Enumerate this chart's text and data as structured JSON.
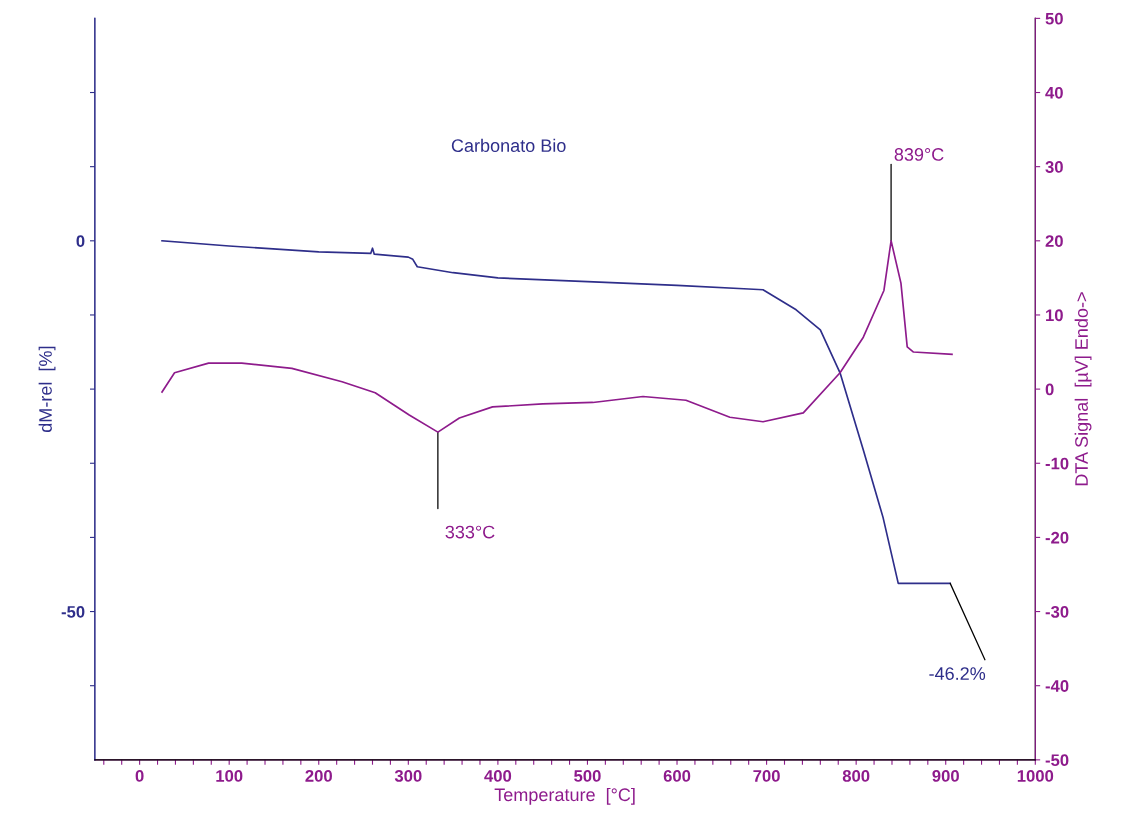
{
  "chart_data": {
    "type": "line",
    "title": "Carbonato Bio",
    "xlabel": "Temperature  [°C]",
    "ylabel": "dM-rel  [%]",
    "y2label": "DTA Signal  [µV] Endo->",
    "xlim": [
      -50,
      1000
    ],
    "xticks": [
      {
        "value": -40,
        "label": null
      },
      {
        "value": -20,
        "label": null
      },
      0,
      {
        "value": 20,
        "label": null
      },
      {
        "value": 40,
        "label": null
      },
      {
        "value": 60,
        "label": null
      },
      {
        "value": 80,
        "label": null
      },
      100,
      {
        "value": 120,
        "label": null
      },
      {
        "value": 140,
        "label": null
      },
      {
        "value": 160,
        "label": null
      },
      {
        "value": 180,
        "label": null
      },
      200,
      {
        "value": 220,
        "label": null
      },
      {
        "value": 240,
        "label": null
      },
      {
        "value": 260,
        "label": null
      },
      {
        "value": 280,
        "label": null
      },
      300,
      {
        "value": 320,
        "label": null
      },
      {
        "value": 340,
        "label": null
      },
      {
        "value": 360,
        "label": null
      },
      {
        "value": 380,
        "label": null
      },
      400,
      {
        "value": 420,
        "label": null
      },
      {
        "value": 440,
        "label": null
      },
      {
        "value": 460,
        "label": null
      },
      {
        "value": 480,
        "label": null
      },
      500,
      {
        "value": 520,
        "label": null
      },
      {
        "value": 540,
        "label": null
      },
      {
        "value": 560,
        "label": null
      },
      {
        "value": 580,
        "label": null
      },
      600,
      {
        "value": 620,
        "label": null
      },
      {
        "value": 640,
        "label": null
      },
      {
        "value": 660,
        "label": null
      },
      {
        "value": 680,
        "label": null
      },
      700,
      {
        "value": 720,
        "label": null
      },
      {
        "value": 740,
        "label": null
      },
      {
        "value": 760,
        "label": null
      },
      {
        "value": 780,
        "label": null
      },
      800,
      {
        "value": 820,
        "label": null
      },
      {
        "value": 840,
        "label": null
      },
      {
        "value": 860,
        "label": null
      },
      {
        "value": 880,
        "label": null
      },
      900,
      {
        "value": 920,
        "label": null
      },
      {
        "value": 940,
        "label": null
      },
      {
        "value": 960,
        "label": null
      },
      {
        "value": 980,
        "label": null
      },
      1000
    ],
    "ylim": [
      -70,
      30
    ],
    "yticks": [
      {
        "value": -60,
        "label": null
      },
      -50,
      {
        "value": -40,
        "label": null
      },
      {
        "value": -30,
        "label": null
      },
      {
        "value": -20,
        "label": null
      },
      {
        "value": -10,
        "label": null
      },
      0,
      {
        "value": 10,
        "label": null
      },
      {
        "value": 20,
        "label": null
      }
    ],
    "y2lim": [
      -50,
      50
    ],
    "y2ticks": [
      -50,
      -40,
      -30,
      -20,
      -10,
      0,
      10,
      20,
      30,
      40,
      50
    ],
    "grid": false,
    "legend": false,
    "series": [
      {
        "color": "#2e2e8a",
        "axis": "y",
        "x": [
          25,
          100,
          200,
          258,
          260,
          262,
          300,
          305,
          310,
          350,
          400,
          500,
          600,
          680,
          696,
          733,
          760,
          782,
          808,
          830,
          847,
          905
        ],
        "values": [
          0,
          -0.7,
          -1.5,
          -1.7,
          -1.0,
          -1.8,
          -2.2,
          -2.5,
          -3.5,
          -4.3,
          -5,
          -5.5,
          -6,
          -6.5,
          -6.6,
          -9.3,
          -12,
          -17.8,
          -28.2,
          -37.3,
          -46.2,
          -46.2
        ]
      },
      {
        "color": "#8e1b8c",
        "axis": "y2",
        "x": [
          25,
          39,
          77,
          114,
          170,
          226,
          263,
          301,
          333,
          357,
          394,
          450,
          506,
          562,
          610,
          659,
          696,
          741,
          782,
          808,
          831,
          839,
          850,
          857,
          864,
          907
        ],
        "values": [
          -0.4,
          2.2,
          3.5,
          3.5,
          2.8,
          1,
          -0.5,
          -3.5,
          -5.8,
          -3.9,
          -2.4,
          -2,
          -1.8,
          -1,
          -1.5,
          -3.8,
          -4.4,
          -3.2,
          2.2,
          7,
          13.3,
          20,
          14.3,
          5.7,
          5,
          4.7
        ]
      }
    ],
    "annotations": [
      {
        "text": "333°C",
        "x": 333,
        "y": -25.8
      },
      {
        "text": "839°C",
        "x": 839,
        "y": 0
      },
      {
        "text": "-46.2%",
        "x": 905,
        "y": -46.2
      }
    ]
  }
}
